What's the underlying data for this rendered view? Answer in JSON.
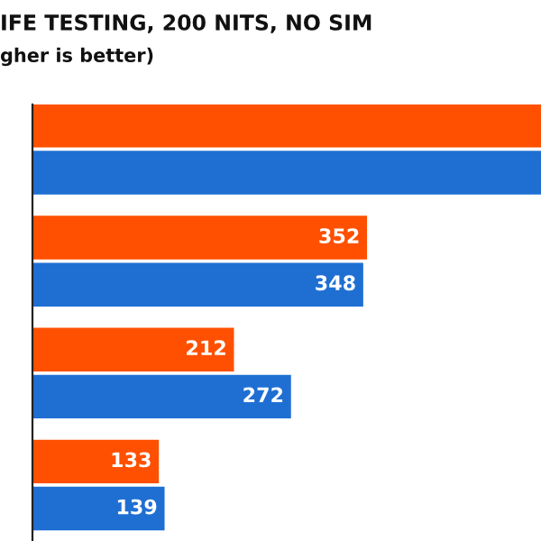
{
  "chart_data": {
    "type": "bar",
    "orientation": "horizontal",
    "title": "IFE TESTING, 200 NITS, NO SIM",
    "subtitle": "gher is better)",
    "categories": [
      null,
      null,
      null,
      null
    ],
    "series": [
      {
        "color": "#fe5000",
        "values": [
          535,
          352,
          212,
          133
        ],
        "value_labels": [
          null,
          "352",
          "212",
          "133"
        ]
      },
      {
        "color": "#1f6fd3",
        "values": [
          535,
          348,
          272,
          139
        ],
        "value_labels": [
          null,
          "348",
          "272",
          "139"
        ]
      }
    ],
    "xlim": [
      0,
      535
    ],
    "grid": false,
    "legend": false
  }
}
